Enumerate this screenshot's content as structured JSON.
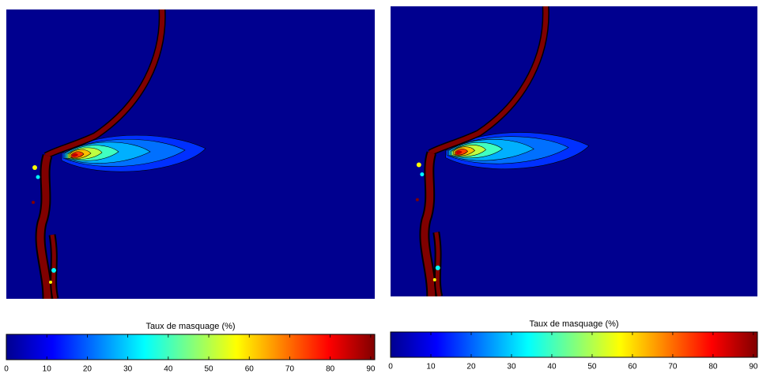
{
  "chart_data": [
    {
      "type": "contour",
      "colorbar_label": "Taux de masquage (%)",
      "clim": [
        0,
        91
      ],
      "cticks": [
        0,
        10,
        20,
        30,
        40,
        50,
        60,
        70,
        80,
        90
      ],
      "colormap": "jet"
    },
    {
      "type": "contour",
      "colorbar_label": "Taux de masquage (%)",
      "clim": [
        0,
        91
      ],
      "cticks": [
        0,
        10,
        20,
        30,
        40,
        50,
        60,
        70,
        80,
        90
      ],
      "colormap": "jet"
    }
  ]
}
